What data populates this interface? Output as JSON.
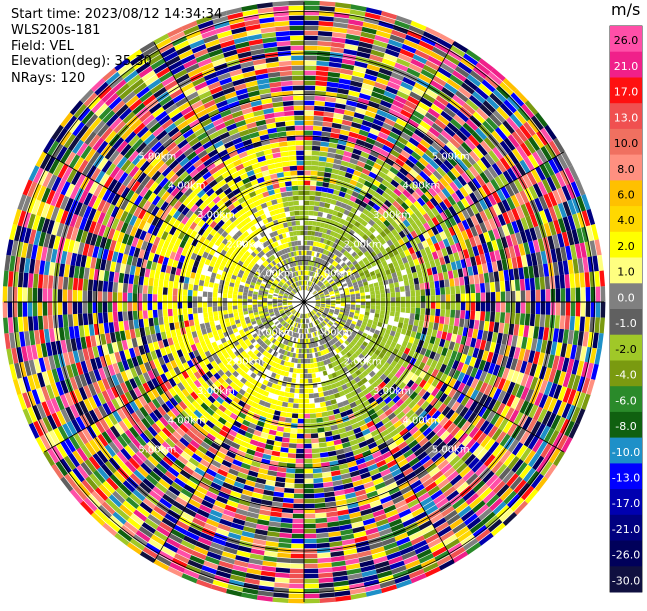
{
  "header": {
    "start_time": "Start time: 2023/08/12 14:34:34",
    "instrument": "WLS200s-181",
    "field": "Field: VEL",
    "elevation": "Elevation(deg): 35.30",
    "nrays": "NRays: 120"
  },
  "colorbar": {
    "unit": "m/s",
    "ticks": [
      "26.0",
      "21.0",
      "17.0",
      "13.0",
      "10.0",
      "8.0",
      "6.0",
      "4.0",
      "2.0",
      "1.0",
      "0.0",
      "-1.0",
      "-2.0",
      "-4.0",
      "-6.0",
      "-8.0",
      "-10.0",
      "-13.0",
      "-17.0",
      "-21.0",
      "-26.0",
      "-30.0"
    ],
    "colors": [
      "#ff4fa8",
      "#f0208a",
      "#ff1010",
      "#f05050",
      "#f07060",
      "#ff9080",
      "#ffc000",
      "#ffd800",
      "#ffff00",
      "#ffff80",
      "#808080",
      "#606060",
      "#a0c828",
      "#7a9a10",
      "#2a8a2a",
      "#106010",
      "#1e90c8",
      "#0000ff",
      "#0000b0",
      "#000080",
      "#00005a",
      "#101040"
    ]
  },
  "chart_data": {
    "type": "polar-ppi",
    "field": "VEL",
    "units": "m/s",
    "nrays": 120,
    "elevation_deg": 35.3,
    "range_ring_labels": [
      "1.00km",
      "2.00km",
      "3.00km",
      "4.00km",
      "5.00km"
    ],
    "value_bounds": [
      -30.0,
      -26.0,
      -21.0,
      -17.0,
      -13.0,
      -10.0,
      -8.0,
      -6.0,
      -4.0,
      -2.0,
      -1.0,
      0.0,
      1.0,
      2.0,
      4.0,
      6.0,
      8.0,
      10.0,
      13.0,
      17.0,
      21.0,
      26.0
    ]
  }
}
